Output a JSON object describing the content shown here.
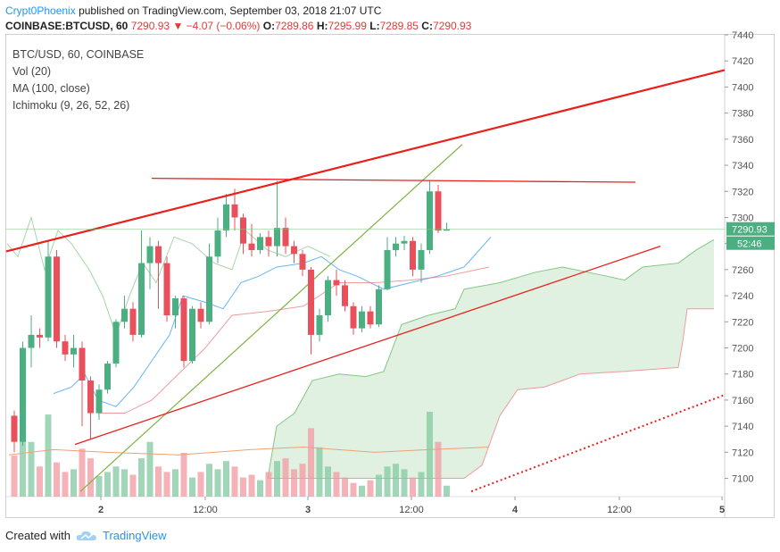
{
  "header": {
    "author": "Crypt0Phoenix",
    "published": "published on TradingView.com, September 03, 2018 21:07 UTC"
  },
  "quote": {
    "symbol": "COINBASE:BTCUSD, 60",
    "last": "7290.93",
    "change": "−4.07 (−0.06%)",
    "o_label": "O:",
    "o": "7289.86",
    "h_label": "H:",
    "h": "7295.99",
    "l_label": "L:",
    "l": "7289.85",
    "c_label": "C:",
    "c": "7290.93"
  },
  "legend": {
    "line1": "BTC/USD, 60, COINBASE",
    "line2": "Vol (20)",
    "line3": "MA (100, close)",
    "line4": "Ichimoku (9, 26, 52, 26)"
  },
  "price_label": "7290.93",
  "countdown_label": "52:46",
  "footer": {
    "created": "Created with",
    "brand": "TradingView"
  },
  "colors": {
    "up": "#4caf82",
    "down": "#e8505b",
    "trend": "#e8201c",
    "cloud": "#c8e6c9",
    "ma": "#7cb342"
  },
  "chart_data": {
    "type": "candlestick",
    "ylim": [
      7086,
      7440
    ],
    "y_ticks": [
      7100,
      7120,
      7140,
      7160,
      7180,
      7200,
      7220,
      7240,
      7260,
      7280,
      7300,
      7320,
      7340,
      7360,
      7380,
      7400,
      7420,
      7440
    ],
    "x_ticks": [
      "2",
      "12:00",
      "3",
      "12:00",
      "4",
      "12:00",
      "5"
    ],
    "candles": [
      [
        7148,
        7128,
        7152,
        7120
      ],
      [
        7128,
        7200,
        7205,
        7125
      ],
      [
        7200,
        7210,
        7225,
        7185
      ],
      [
        7210,
        7208,
        7215,
        7200
      ],
      [
        7208,
        7270,
        7282,
        7205
      ],
      [
        7270,
        7205,
        7275,
        7200
      ],
      [
        7205,
        7195,
        7210,
        7190
      ],
      [
        7195,
        7200,
        7210,
        7185
      ],
      [
        7200,
        7175,
        7205,
        7140
      ],
      [
        7175,
        7150,
        7178,
        7130
      ],
      [
        7150,
        7168,
        7172,
        7145
      ],
      [
        7168,
        7188,
        7190,
        7165
      ],
      [
        7188,
        7220,
        7222,
        7185
      ],
      [
        7220,
        7230,
        7240,
        7215
      ],
      [
        7230,
        7210,
        7235,
        7205
      ],
      [
        7210,
        7265,
        7290,
        7208
      ],
      [
        7265,
        7278,
        7285,
        7245
      ],
      [
        7278,
        7265,
        7282,
        7230
      ],
      [
        7265,
        7225,
        7270,
        7220
      ],
      [
        7225,
        7238,
        7240,
        7215
      ],
      [
        7238,
        7190,
        7240,
        7185
      ],
      [
        7190,
        7230,
        7232,
        7188
      ],
      [
        7230,
        7220,
        7235,
        7215
      ],
      [
        7220,
        7270,
        7280,
        7218
      ],
      [
        7270,
        7290,
        7300,
        7265
      ],
      [
        7290,
        7310,
        7318,
        7285
      ],
      [
        7310,
        7300,
        7322,
        7290
      ],
      [
        7300,
        7280,
        7303,
        7272
      ],
      [
        7280,
        7275,
        7295,
        7270
      ],
      [
        7275,
        7285,
        7288,
        7272
      ],
      [
        7285,
        7278,
        7290,
        7270
      ],
      [
        7278,
        7292,
        7328,
        7270
      ],
      [
        7292,
        7278,
        7300,
        7272
      ],
      [
        7278,
        7272,
        7282,
        7265
      ],
      [
        7272,
        7260,
        7275,
        7255
      ],
      [
        7260,
        7210,
        7262,
        7195
      ],
      [
        7210,
        7225,
        7230,
        7205
      ],
      [
        7225,
        7252,
        7255,
        7220
      ],
      [
        7252,
        7248,
        7260,
        7240
      ],
      [
        7248,
        7232,
        7252,
        7228
      ],
      [
        7232,
        7215,
        7235,
        7210
      ],
      [
        7215,
        7228,
        7232,
        7212
      ],
      [
        7228,
        7218,
        7232,
        7215
      ],
      [
        7218,
        7245,
        7248,
        7216
      ],
      [
        7245,
        7275,
        7285,
        7244
      ],
      [
        7275,
        7280,
        7285,
        7270
      ],
      [
        7280,
        7282,
        7286,
        7275
      ],
      [
        7282,
        7260,
        7285,
        7255
      ],
      [
        7260,
        7275,
        7280,
        7250
      ],
      [
        7275,
        7320,
        7328,
        7272
      ],
      [
        7320,
        7290,
        7325,
        7288
      ],
      [
        7289.86,
        7290.93,
        7295.99,
        7289.85
      ]
    ],
    "volumes": [
      30,
      55,
      40,
      22,
      60,
      25,
      18,
      20,
      35,
      28,
      15,
      18,
      22,
      20,
      16,
      28,
      40,
      22,
      18,
      20,
      32,
      14,
      18,
      24,
      20,
      26,
      22,
      14,
      16,
      12,
      18,
      26,
      28,
      20,
      24,
      50,
      36,
      22,
      18,
      14,
      10,
      8,
      12,
      16,
      22,
      24,
      20,
      14,
      18,
      62,
      40,
      8
    ]
  }
}
